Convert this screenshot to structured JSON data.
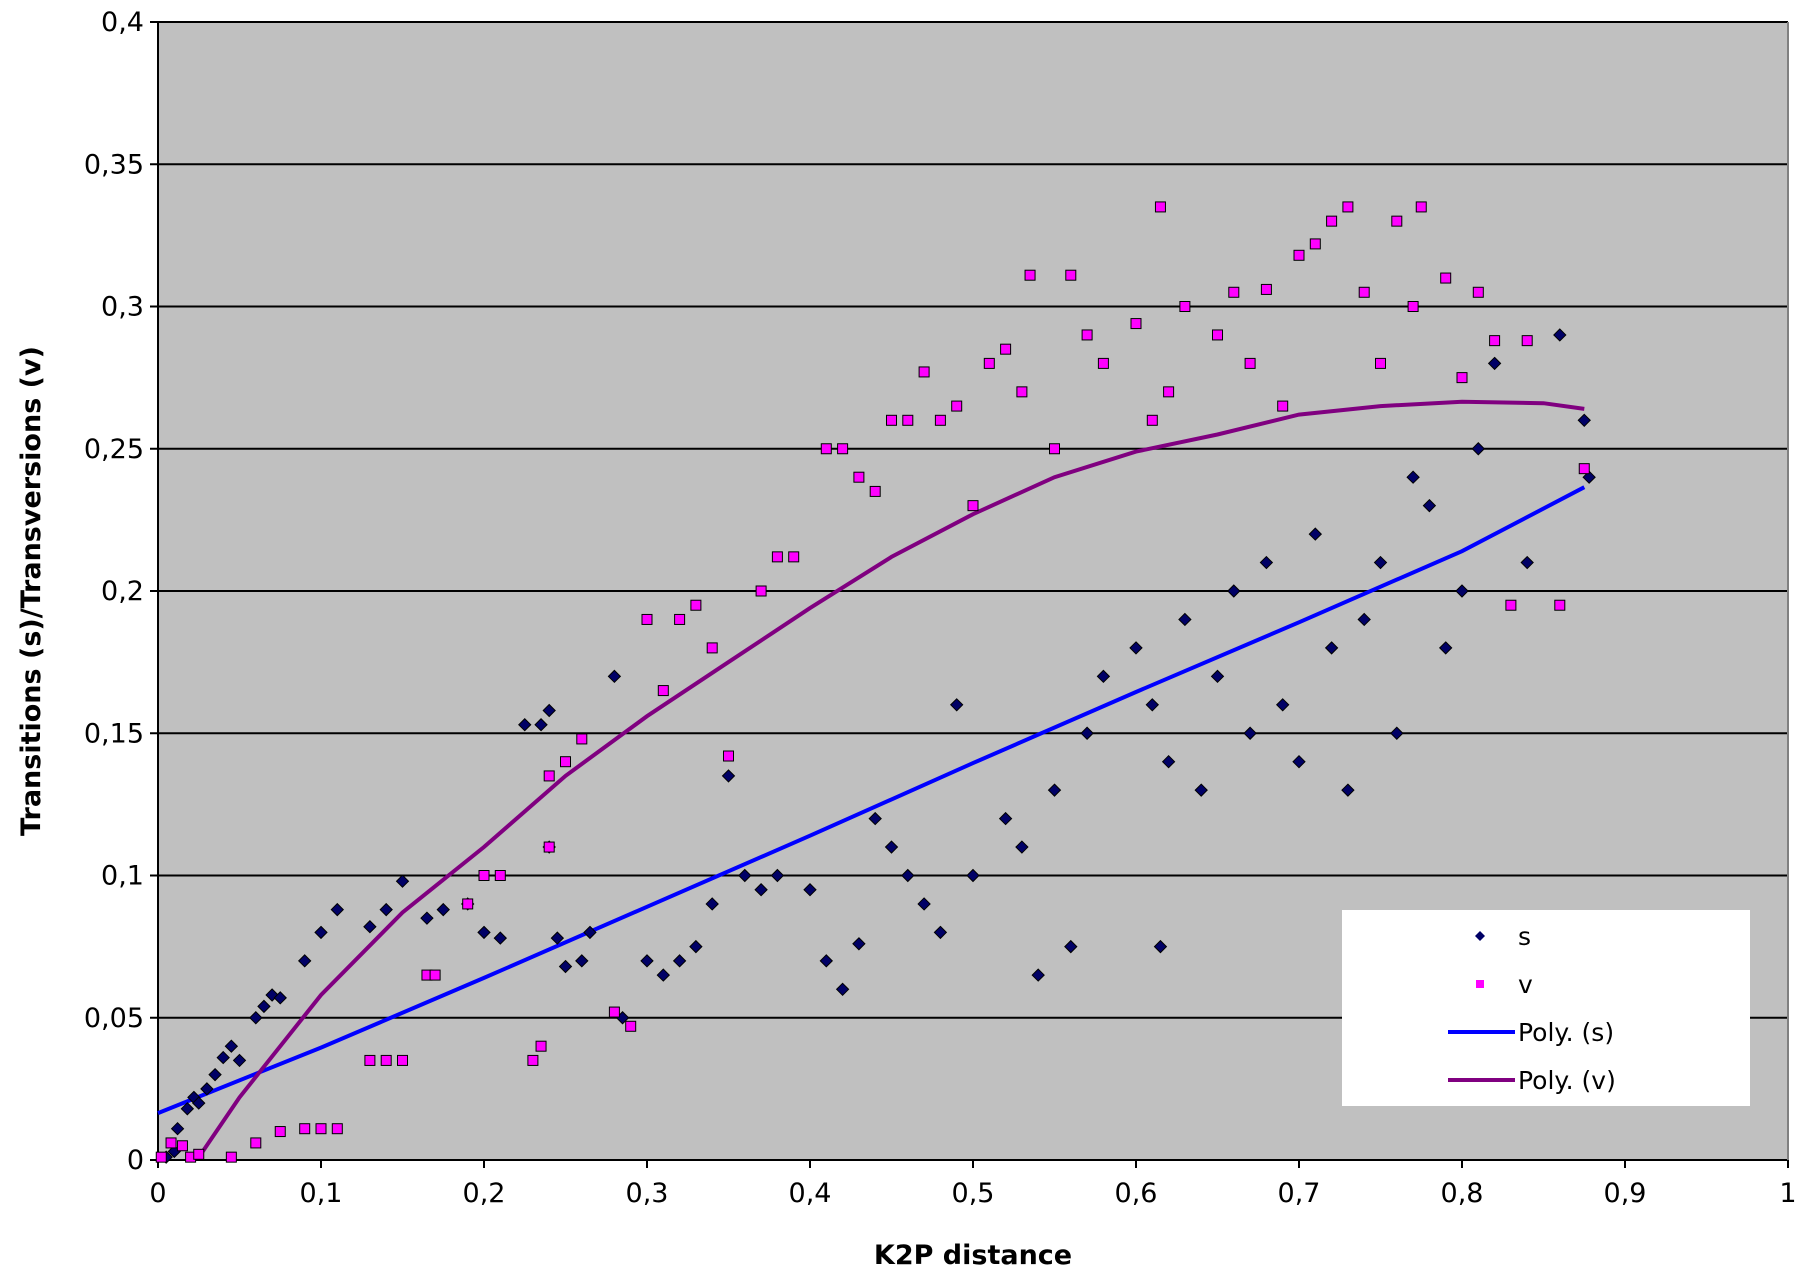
{
  "chart_data": {
    "type": "scatter",
    "title": "",
    "xlabel": "K2P distance",
    "ylabel": "Transitions (s)/Transversions (v)",
    "xlim": [
      0,
      1
    ],
    "ylim": [
      0,
      0.4
    ],
    "x_ticks": [
      "0",
      "0,1",
      "0,2",
      "0,3",
      "0,4",
      "0,5",
      "0,6",
      "0,7",
      "0,8",
      "0,9",
      "1"
    ],
    "y_ticks": [
      "0",
      "0,05",
      "0,1",
      "0,15",
      "0,2",
      "0,25",
      "0,3",
      "0,35",
      "0,4"
    ],
    "grid": "horizontal",
    "background": "#c0c0c0",
    "legend_position": "bottom-right",
    "legend": [
      {
        "label": "s",
        "kind": "marker",
        "color": "#000066",
        "shape": "diamond"
      },
      {
        "label": "v",
        "kind": "marker",
        "color": "#ff00ff",
        "shape": "square"
      },
      {
        "label": "Poly.   (s)",
        "kind": "line",
        "color": "#0000ff"
      },
      {
        "label": "Poly.   (v)",
        "kind": "line",
        "color": "#800080"
      }
    ],
    "series": [
      {
        "name": "s",
        "color": "#000066",
        "marker": "diamond",
        "points": [
          [
            0.005,
            0.001
          ],
          [
            0.01,
            0.003
          ],
          [
            0.012,
            0.011
          ],
          [
            0.018,
            0.018
          ],
          [
            0.022,
            0.022
          ],
          [
            0.025,
            0.02
          ],
          [
            0.03,
            0.025
          ],
          [
            0.035,
            0.03
          ],
          [
            0.04,
            0.036
          ],
          [
            0.045,
            0.04
          ],
          [
            0.05,
            0.035
          ],
          [
            0.06,
            0.05
          ],
          [
            0.065,
            0.054
          ],
          [
            0.07,
            0.058
          ],
          [
            0.075,
            0.057
          ],
          [
            0.09,
            0.07
          ],
          [
            0.1,
            0.08
          ],
          [
            0.11,
            0.088
          ],
          [
            0.13,
            0.082
          ],
          [
            0.14,
            0.088
          ],
          [
            0.15,
            0.098
          ],
          [
            0.165,
            0.085
          ],
          [
            0.175,
            0.088
          ],
          [
            0.19,
            0.09
          ],
          [
            0.2,
            0.08
          ],
          [
            0.21,
            0.078
          ],
          [
            0.225,
            0.153
          ],
          [
            0.235,
            0.153
          ],
          [
            0.24,
            0.158
          ],
          [
            0.24,
            0.11
          ],
          [
            0.245,
            0.078
          ],
          [
            0.25,
            0.068
          ],
          [
            0.26,
            0.07
          ],
          [
            0.265,
            0.08
          ],
          [
            0.28,
            0.17
          ],
          [
            0.285,
            0.05
          ],
          [
            0.3,
            0.07
          ],
          [
            0.31,
            0.065
          ],
          [
            0.32,
            0.07
          ],
          [
            0.33,
            0.075
          ],
          [
            0.34,
            0.09
          ],
          [
            0.35,
            0.135
          ],
          [
            0.36,
            0.1
          ],
          [
            0.37,
            0.095
          ],
          [
            0.38,
            0.1
          ],
          [
            0.4,
            0.095
          ],
          [
            0.41,
            0.07
          ],
          [
            0.42,
            0.06
          ],
          [
            0.43,
            0.076
          ],
          [
            0.44,
            0.12
          ],
          [
            0.45,
            0.11
          ],
          [
            0.46,
            0.1
          ],
          [
            0.47,
            0.09
          ],
          [
            0.48,
            0.08
          ],
          [
            0.49,
            0.16
          ],
          [
            0.5,
            0.1
          ],
          [
            0.52,
            0.12
          ],
          [
            0.53,
            0.11
          ],
          [
            0.54,
            0.065
          ],
          [
            0.55,
            0.13
          ],
          [
            0.56,
            0.075
          ],
          [
            0.57,
            0.15
          ],
          [
            0.58,
            0.17
          ],
          [
            0.6,
            0.18
          ],
          [
            0.61,
            0.16
          ],
          [
            0.615,
            0.075
          ],
          [
            0.62,
            0.14
          ],
          [
            0.63,
            0.19
          ],
          [
            0.64,
            0.13
          ],
          [
            0.65,
            0.17
          ],
          [
            0.66,
            0.2
          ],
          [
            0.67,
            0.15
          ],
          [
            0.68,
            0.21
          ],
          [
            0.69,
            0.16
          ],
          [
            0.7,
            0.14
          ],
          [
            0.71,
            0.22
          ],
          [
            0.72,
            0.18
          ],
          [
            0.73,
            0.13
          ],
          [
            0.74,
            0.19
          ],
          [
            0.75,
            0.21
          ],
          [
            0.76,
            0.15
          ],
          [
            0.77,
            0.24
          ],
          [
            0.78,
            0.23
          ],
          [
            0.79,
            0.18
          ],
          [
            0.8,
            0.2
          ],
          [
            0.81,
            0.25
          ],
          [
            0.82,
            0.28
          ],
          [
            0.84,
            0.21
          ],
          [
            0.86,
            0.29
          ],
          [
            0.875,
            0.26
          ],
          [
            0.878,
            0.24
          ]
        ]
      },
      {
        "name": "v",
        "color": "#ff00ff",
        "marker": "square",
        "points": [
          [
            0.002,
            0.001
          ],
          [
            0.008,
            0.006
          ],
          [
            0.015,
            0.005
          ],
          [
            0.02,
            0.001
          ],
          [
            0.025,
            0.002
          ],
          [
            0.045,
            0.001
          ],
          [
            0.06,
            0.006
          ],
          [
            0.075,
            0.01
          ],
          [
            0.09,
            0.011
          ],
          [
            0.1,
            0.011
          ],
          [
            0.11,
            0.011
          ],
          [
            0.13,
            0.035
          ],
          [
            0.14,
            0.035
          ],
          [
            0.15,
            0.035
          ],
          [
            0.165,
            0.065
          ],
          [
            0.17,
            0.065
          ],
          [
            0.19,
            0.09
          ],
          [
            0.2,
            0.1
          ],
          [
            0.21,
            0.1
          ],
          [
            0.23,
            0.035
          ],
          [
            0.235,
            0.04
          ],
          [
            0.24,
            0.135
          ],
          [
            0.24,
            0.11
          ],
          [
            0.25,
            0.14
          ],
          [
            0.26,
            0.148
          ],
          [
            0.28,
            0.052
          ],
          [
            0.29,
            0.047
          ],
          [
            0.3,
            0.19
          ],
          [
            0.31,
            0.165
          ],
          [
            0.32,
            0.19
          ],
          [
            0.33,
            0.195
          ],
          [
            0.34,
            0.18
          ],
          [
            0.35,
            0.142
          ],
          [
            0.37,
            0.2
          ],
          [
            0.38,
            0.212
          ],
          [
            0.39,
            0.212
          ],
          [
            0.41,
            0.25
          ],
          [
            0.42,
            0.25
          ],
          [
            0.43,
            0.24
          ],
          [
            0.44,
            0.235
          ],
          [
            0.45,
            0.26
          ],
          [
            0.46,
            0.26
          ],
          [
            0.47,
            0.277
          ],
          [
            0.48,
            0.26
          ],
          [
            0.49,
            0.265
          ],
          [
            0.5,
            0.23
          ],
          [
            0.51,
            0.28
          ],
          [
            0.52,
            0.285
          ],
          [
            0.53,
            0.27
          ],
          [
            0.535,
            0.311
          ],
          [
            0.55,
            0.25
          ],
          [
            0.56,
            0.311
          ],
          [
            0.57,
            0.29
          ],
          [
            0.58,
            0.28
          ],
          [
            0.6,
            0.294
          ],
          [
            0.61,
            0.26
          ],
          [
            0.615,
            0.335
          ],
          [
            0.62,
            0.27
          ],
          [
            0.63,
            0.3
          ],
          [
            0.65,
            0.29
          ],
          [
            0.66,
            0.305
          ],
          [
            0.67,
            0.28
          ],
          [
            0.68,
            0.306
          ],
          [
            0.69,
            0.265
          ],
          [
            0.7,
            0.318
          ],
          [
            0.71,
            0.322
          ],
          [
            0.72,
            0.33
          ],
          [
            0.73,
            0.335
          ],
          [
            0.74,
            0.305
          ],
          [
            0.75,
            0.28
          ],
          [
            0.76,
            0.33
          ],
          [
            0.77,
            0.3
          ],
          [
            0.775,
            0.335
          ],
          [
            0.79,
            0.31
          ],
          [
            0.8,
            0.275
          ],
          [
            0.81,
            0.305
          ],
          [
            0.82,
            0.288
          ],
          [
            0.83,
            0.195
          ],
          [
            0.84,
            0.288
          ],
          [
            0.86,
            0.195
          ],
          [
            0.875,
            0.243
          ]
        ]
      }
    ],
    "trendlines": [
      {
        "name": "Poly.   (s)",
        "color": "#0000ff",
        "points": [
          [
            0,
            0.0165
          ],
          [
            0.1,
            0.0395
          ],
          [
            0.2,
            0.064
          ],
          [
            0.3,
            0.089
          ],
          [
            0.4,
            0.114
          ],
          [
            0.5,
            0.1395
          ],
          [
            0.6,
            0.1645
          ],
          [
            0.7,
            0.189
          ],
          [
            0.8,
            0.214
          ],
          [
            0.875,
            0.2365
          ]
        ]
      },
      {
        "name": "Poly.   (v)",
        "color": "#800080",
        "points": [
          [
            0.025,
            0.001
          ],
          [
            0.05,
            0.022
          ],
          [
            0.1,
            0.058
          ],
          [
            0.15,
            0.087
          ],
          [
            0.2,
            0.11
          ],
          [
            0.25,
            0.135
          ],
          [
            0.3,
            0.156
          ],
          [
            0.35,
            0.175
          ],
          [
            0.4,
            0.194
          ],
          [
            0.45,
            0.212
          ],
          [
            0.5,
            0.227
          ],
          [
            0.55,
            0.24
          ],
          [
            0.6,
            0.249
          ],
          [
            0.65,
            0.255
          ],
          [
            0.7,
            0.262
          ],
          [
            0.75,
            0.265
          ],
          [
            0.8,
            0.2665
          ],
          [
            0.85,
            0.266
          ],
          [
            0.875,
            0.264
          ]
        ]
      }
    ]
  }
}
